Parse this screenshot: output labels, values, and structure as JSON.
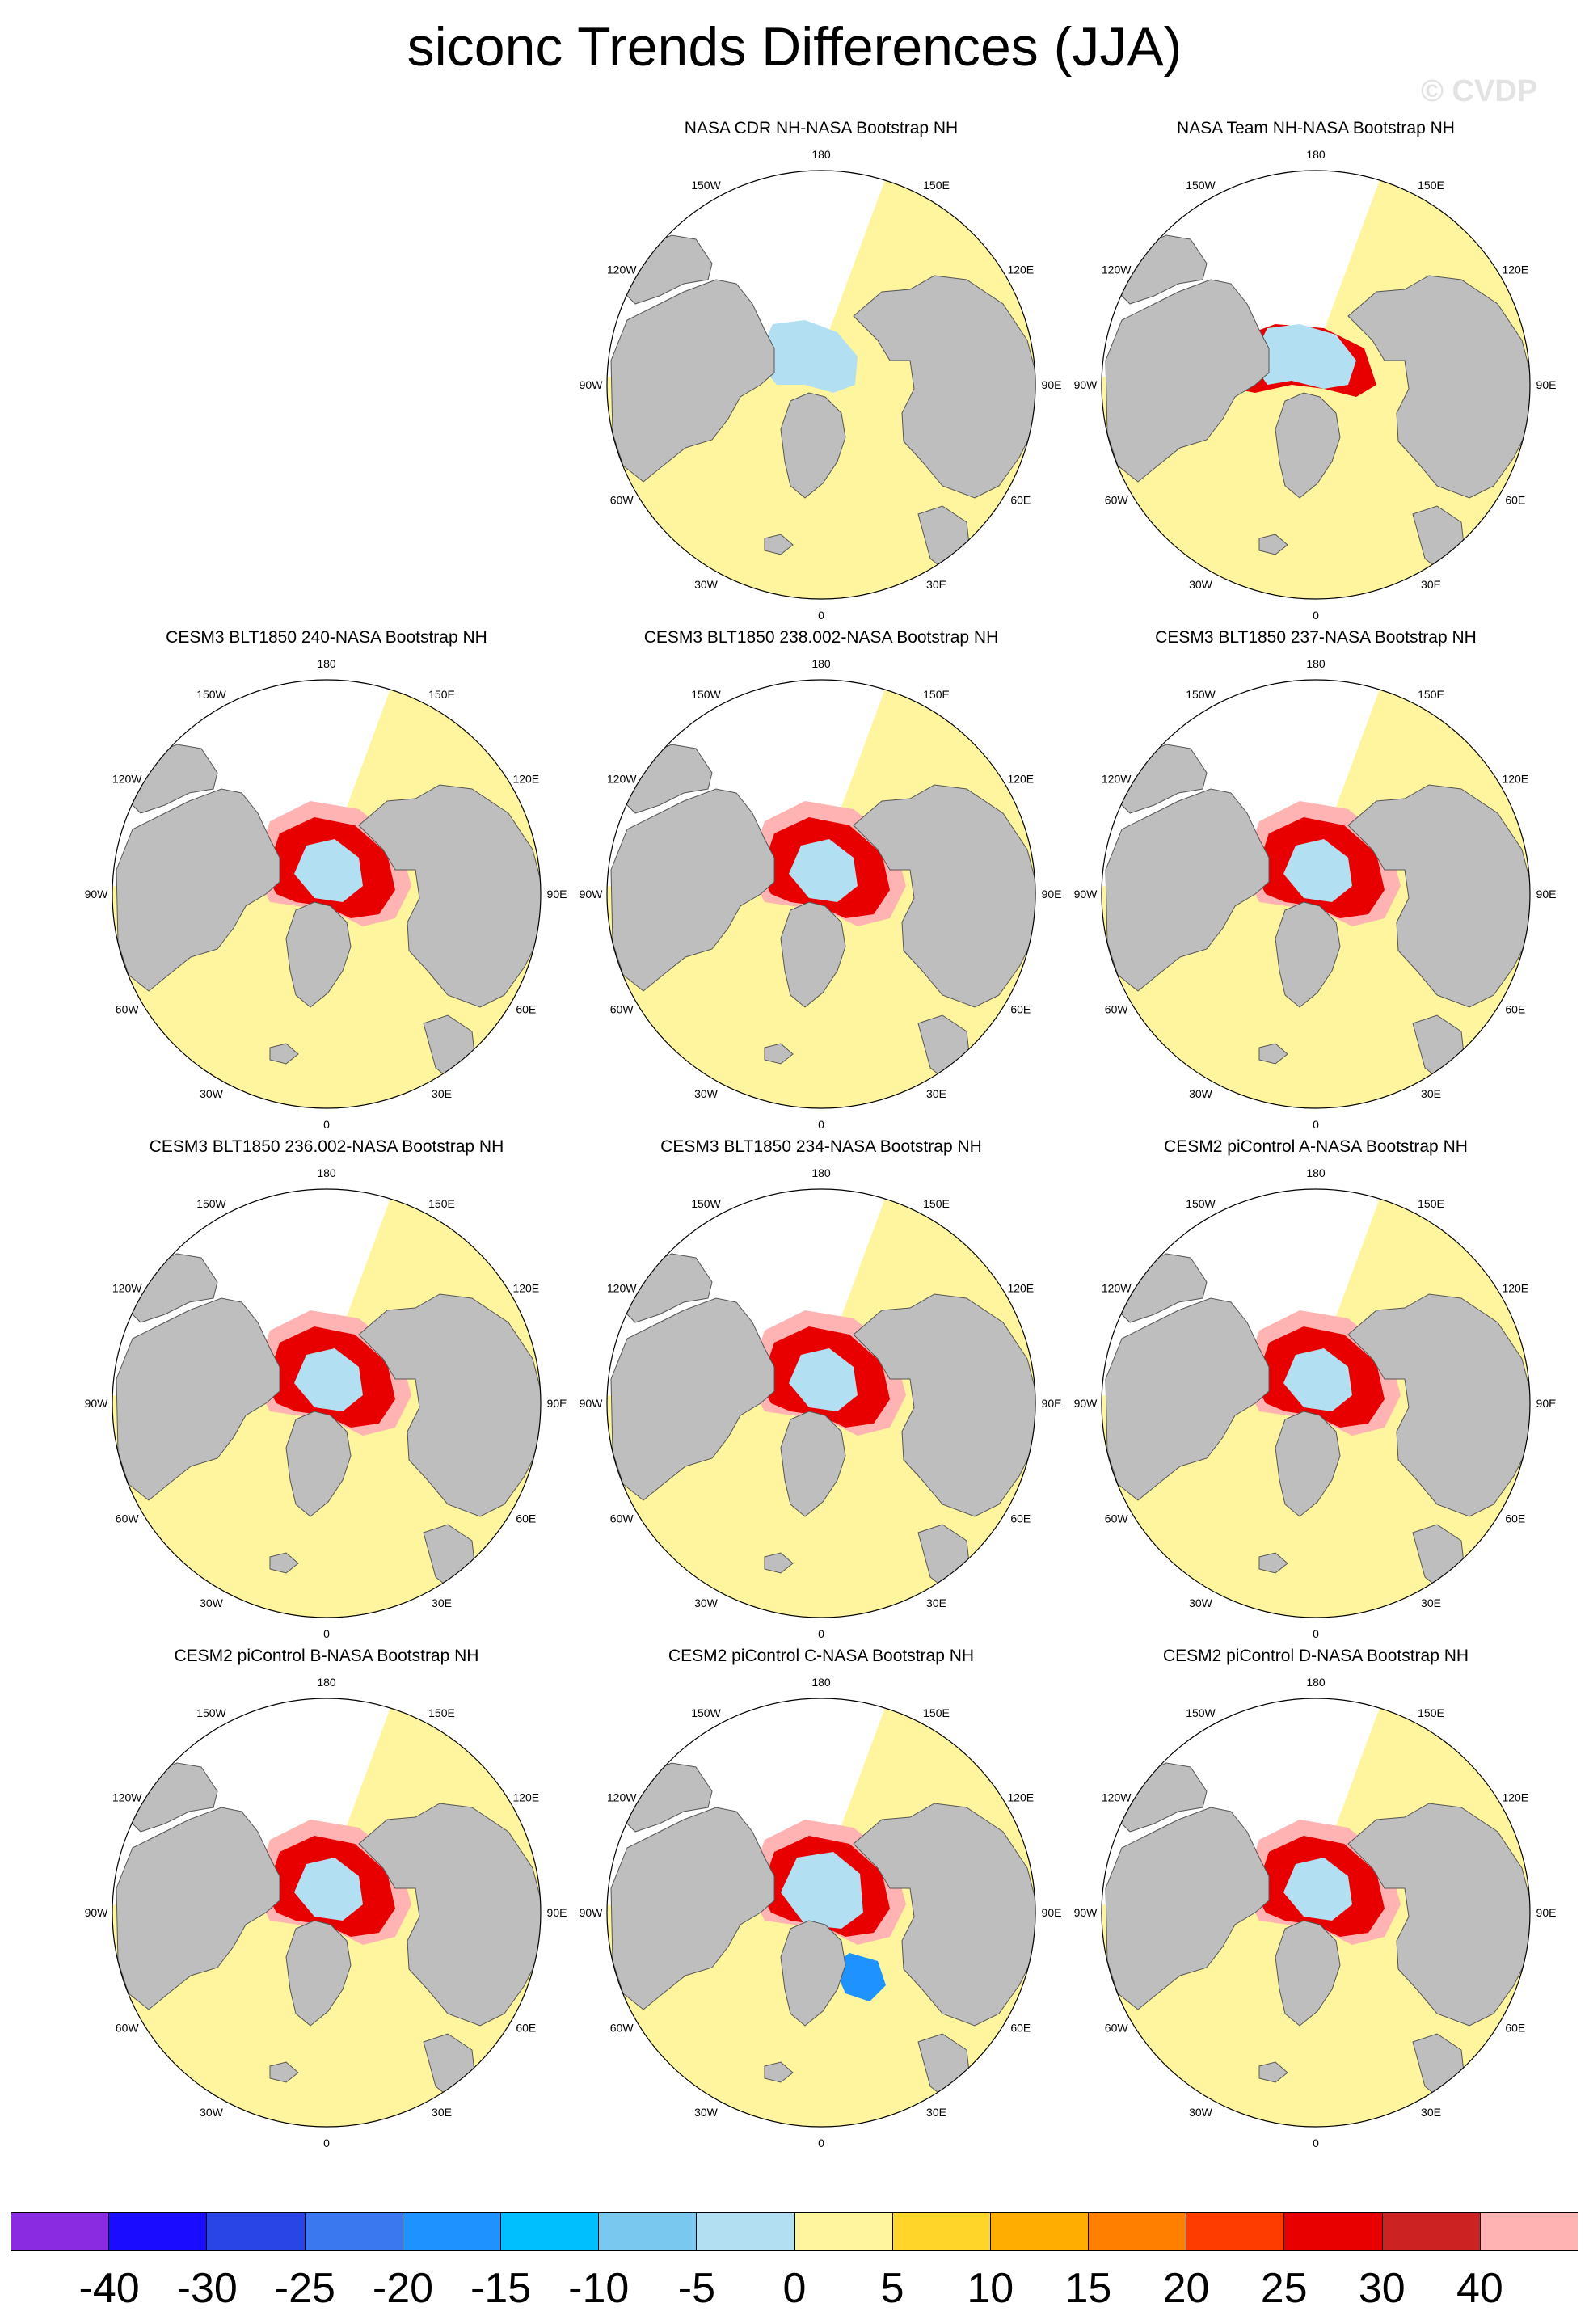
{
  "title": "siconc Trends Differences (JJA)",
  "watermark": "© CVDP",
  "lon_labels": [
    "180",
    "150E",
    "120E",
    "90E",
    "60E",
    "30E",
    "0",
    "30W",
    "60W",
    "90W",
    "120W",
    "150W"
  ],
  "panels": [
    {
      "title": "NASA CDR NH-NASA Bootstrap NH",
      "pattern": "cdr"
    },
    {
      "title": "NASA Team NH-NASA Bootstrap NH",
      "pattern": "team"
    },
    {
      "title": "CESM3 BLT1850 240-NASA Bootstrap NH",
      "pattern": "model"
    },
    {
      "title": "CESM3 BLT1850 238.002-NASA Bootstrap NH",
      "pattern": "model"
    },
    {
      "title": "CESM3 BLT1850 237-NASA Bootstrap NH",
      "pattern": "model"
    },
    {
      "title": "CESM3 BLT1850 236.002-NASA Bootstrap NH",
      "pattern": "model"
    },
    {
      "title": "CESM3 BLT1850 234-NASA Bootstrap NH",
      "pattern": "model"
    },
    {
      "title": "CESM2 piControl A-NASA Bootstrap NH",
      "pattern": "model"
    },
    {
      "title": "CESM2 piControl B-NASA Bootstrap NH",
      "pattern": "model"
    },
    {
      "title": "CESM2 piControl C-NASA Bootstrap NH",
      "pattern": "model_blue"
    },
    {
      "title": "CESM2 piControl D-NASA Bootstrap NH",
      "pattern": "model"
    }
  ],
  "colorbar": {
    "colors": [
      "#8a2be2",
      "#1a0dff",
      "#2a45e6",
      "#3a78ef",
      "#1e93ff",
      "#00bfff",
      "#78c8f0",
      "#b2dff2",
      "#fff59e",
      "#ffd52a",
      "#ffad00",
      "#ff7f00",
      "#ff3c00",
      "#e80000",
      "#cc2222",
      "#ffb3b3"
    ],
    "labels": [
      "-40",
      "-30",
      "-25",
      "-20",
      "-15",
      "-10",
      "-5",
      "0",
      "5",
      "10",
      "15",
      "20",
      "25",
      "30",
      "40"
    ]
  },
  "map_colors": {
    "land": "#bebebe",
    "ocean": "#fff59e",
    "missing": "#ffffff"
  }
}
